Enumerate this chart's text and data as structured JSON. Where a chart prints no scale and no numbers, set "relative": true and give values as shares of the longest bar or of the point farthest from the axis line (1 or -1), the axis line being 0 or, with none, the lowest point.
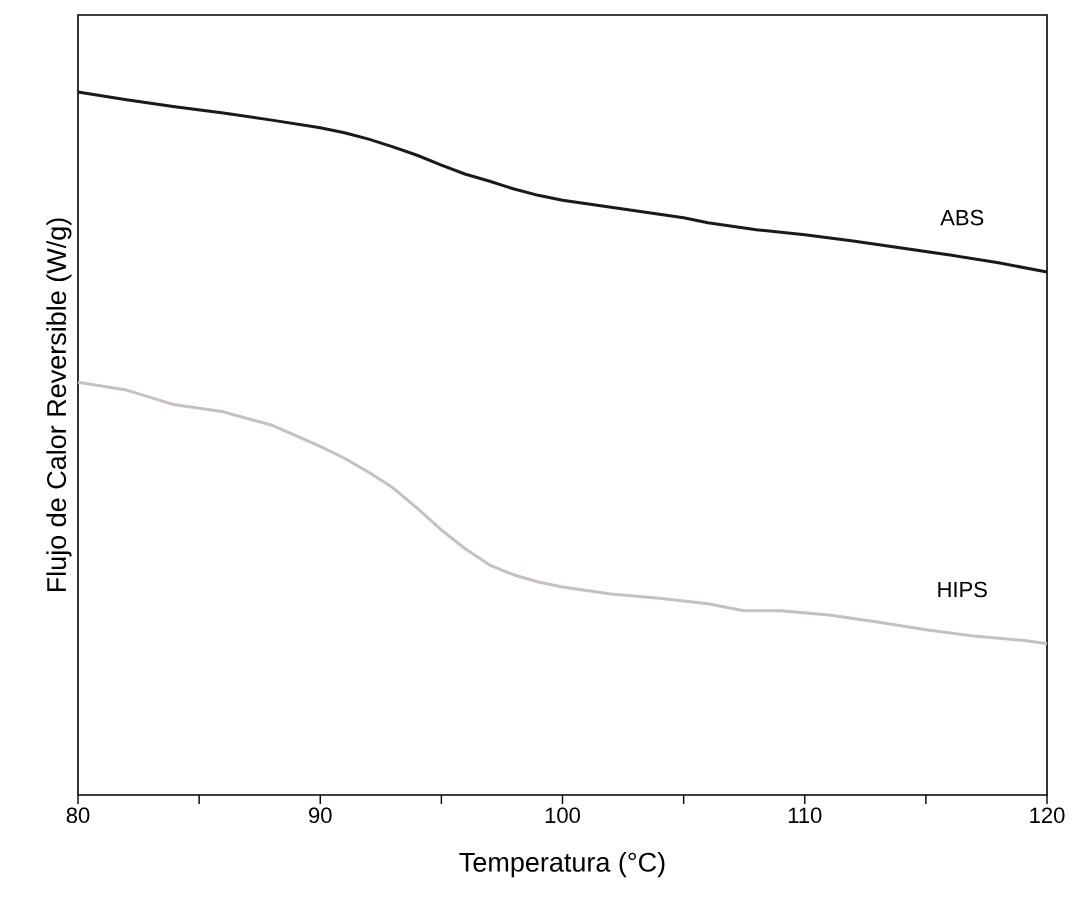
{
  "chart_data": {
    "type": "line",
    "relative": true,
    "xlabel": "Temperatura (°C)",
    "ylabel": "Flujo de Calor Reversible (W/g)",
    "xlim": [
      80,
      120
    ],
    "xticks": [
      80,
      {
        "value": 85,
        "label": null
      },
      90,
      {
        "value": 95,
        "label": null
      },
      100,
      {
        "value": 105,
        "label": null
      },
      110,
      {
        "value": 115,
        "label": null
      },
      120
    ],
    "x": [
      80,
      82,
      84,
      86,
      88,
      90,
      91,
      92,
      93,
      94,
      95,
      96,
      97,
      98,
      99,
      100,
      102,
      104,
      105,
      106,
      108,
      110,
      112,
      114,
      116,
      118,
      120
    ],
    "series": [
      {
        "name": "ABS",
        "color": "#1a1a1a",
        "values": [
          1.0,
          0.989,
          0.979,
          0.97,
          0.96,
          0.949,
          0.942,
          0.933,
          0.922,
          0.91,
          0.896,
          0.883,
          0.873,
          0.862,
          0.853,
          0.846,
          0.836,
          0.826,
          0.821,
          0.814,
          0.804,
          0.797,
          0.788,
          0.778,
          0.768,
          0.757,
          0.744
        ]
      },
      {
        "name": "HIPS",
        "color": "#c8c0bc",
        "x": [
          80,
          82,
          84,
          86,
          88,
          90,
          91,
          92,
          93,
          94,
          95,
          96,
          97,
          98,
          99,
          100,
          102,
          104,
          106,
          107.5,
          109,
          111,
          113,
          115,
          117,
          119,
          120
        ],
        "values": [
          0.587,
          0.576,
          0.555,
          0.545,
          0.526,
          0.496,
          0.479,
          0.459,
          0.437,
          0.408,
          0.377,
          0.35,
          0.327,
          0.313,
          0.303,
          0.296,
          0.286,
          0.28,
          0.272,
          0.262,
          0.262,
          0.256,
          0.246,
          0.235,
          0.226,
          0.22,
          0.215
        ]
      }
    ]
  }
}
